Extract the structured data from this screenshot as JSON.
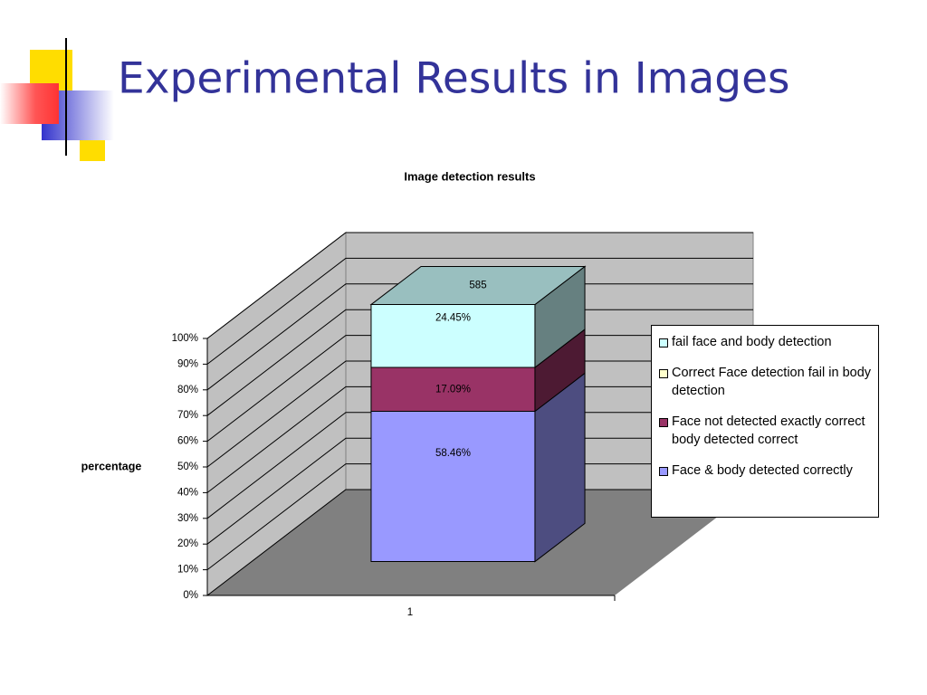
{
  "slide_title": "Experimental Results in Images",
  "chart_data": {
    "type": "bar3d_stacked",
    "title": "Image detection results",
    "ylabel": "percentage",
    "categories": [
      "1"
    ],
    "series": [
      {
        "name": "Face & body detected correctly",
        "color": "#9999ff",
        "values": [
          58.46
        ],
        "value_labels": [
          "58.46%"
        ]
      },
      {
        "name": "Face not detected exactly correct body detected correct",
        "color": "#993366",
        "values": [
          17.09
        ],
        "value_labels": [
          "17.09%"
        ]
      },
      {
        "name": "Correct Face detection fail in body detection",
        "color": "#ffffcc",
        "values": [
          0
        ]
      },
      {
        "name": "fail face and body detection",
        "color": "#ccffff",
        "values": [
          24.45
        ],
        "value_labels": [
          "24.45%"
        ]
      }
    ],
    "top_label": "585",
    "ylim": [
      0,
      100
    ],
    "yticks": [
      {
        "value": 0,
        "label": "0%"
      },
      {
        "value": 10,
        "label": "10%"
      },
      {
        "value": 20,
        "label": "20%"
      },
      {
        "value": 30,
        "label": "30%"
      },
      {
        "value": 40,
        "label": "40%"
      },
      {
        "value": 50,
        "label": "50%"
      },
      {
        "value": 60,
        "label": "60%"
      },
      {
        "value": 70,
        "label": "70%"
      },
      {
        "value": 80,
        "label": "80%"
      },
      {
        "value": 90,
        "label": "90%"
      },
      {
        "value": 100,
        "label": "100%"
      }
    ],
    "grid": true,
    "legend": "right"
  }
}
